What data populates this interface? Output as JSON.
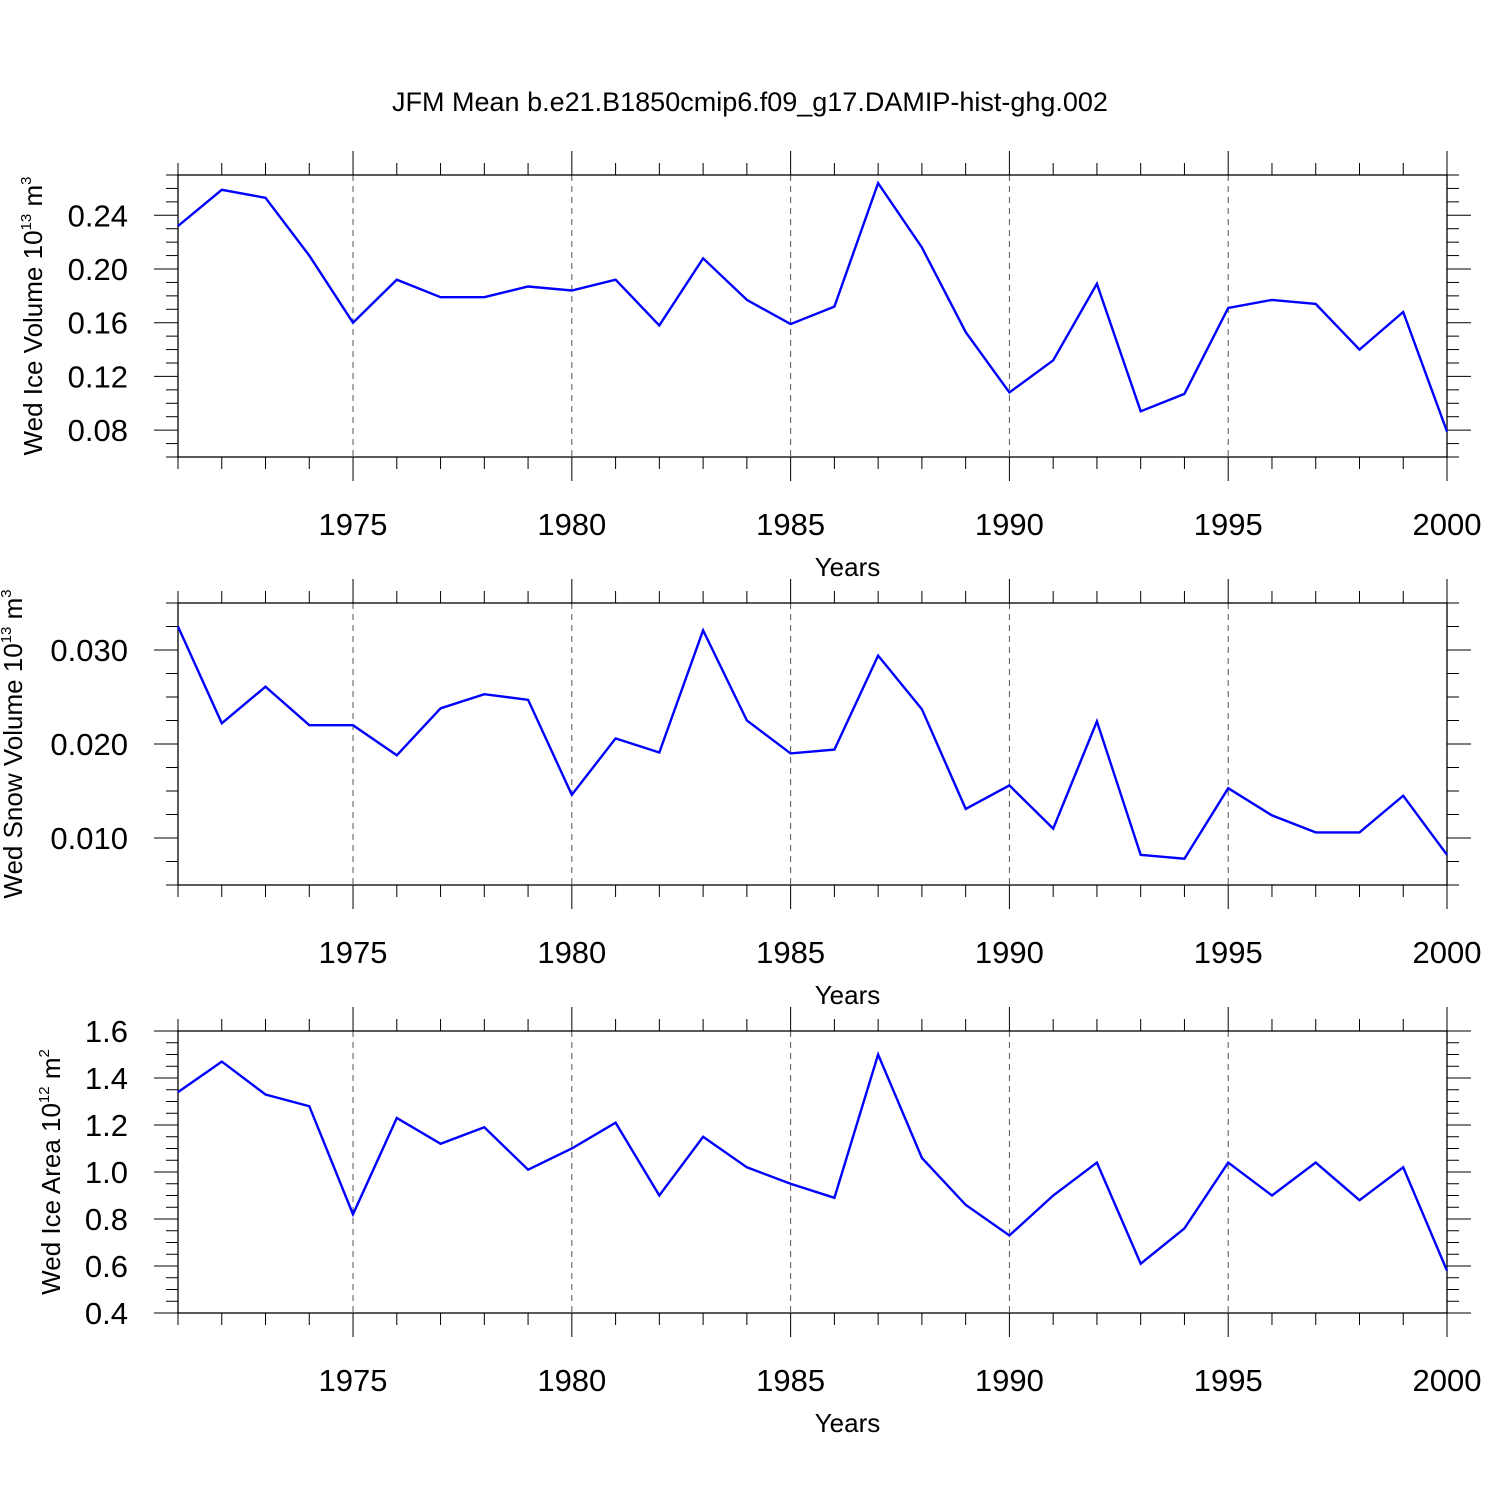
{
  "title": "JFM Mean b.e21.B1850cmip6.f09_g17.DAMIP-hist-ghg.002",
  "chart_data": [
    {
      "type": "line",
      "id": "ice-volume",
      "ylabel": {
        "main": "Wed Ice Volume 10",
        "exp": "13",
        "unit": " m",
        "unit_exp": "3"
      },
      "xlabel": "Years",
      "xlim": [
        1971,
        2000
      ],
      "ylim": [
        0.06,
        0.27
      ],
      "yticks": [
        "0.08",
        "0.12",
        "0.16",
        "0.20",
        "0.24"
      ],
      "xticks": [
        "1975",
        "1980",
        "1985",
        "1990",
        "1995",
        "2000"
      ],
      "line_color": "#0000ff",
      "x": [
        1971,
        1972,
        1973,
        1974,
        1975,
        1976,
        1977,
        1978,
        1979,
        1980,
        1981,
        1982,
        1983,
        1984,
        1985,
        1986,
        1987,
        1988,
        1989,
        1990,
        1991,
        1992,
        1993,
        1994,
        1995,
        1996,
        1997,
        1998,
        1999,
        2000
      ],
      "values": [
        0.232,
        0.259,
        0.253,
        0.21,
        0.16,
        0.192,
        0.179,
        0.179,
        0.187,
        0.184,
        0.192,
        0.158,
        0.208,
        0.177,
        0.159,
        0.172,
        0.264,
        0.216,
        0.153,
        0.108,
        0.132,
        0.189,
        0.094,
        0.107,
        0.171,
        0.177,
        0.174,
        0.14,
        0.168,
        0.079
      ]
    },
    {
      "type": "line",
      "id": "snow-volume",
      "ylabel": {
        "main": "Wed Snow Volume 10",
        "exp": "13",
        "unit": " m",
        "unit_exp": "3"
      },
      "xlabel": "Years",
      "xlim": [
        1971,
        2000
      ],
      "ylim": [
        0.005,
        0.035
      ],
      "yticks": [
        "0.010",
        "0.020",
        "0.030"
      ],
      "xticks": [
        "1975",
        "1980",
        "1985",
        "1990",
        "1995",
        "2000"
      ],
      "line_color": "#0000ff",
      "x": [
        1971,
        1972,
        1973,
        1974,
        1975,
        1976,
        1977,
        1978,
        1979,
        1980,
        1981,
        1982,
        1983,
        1984,
        1985,
        1986,
        1987,
        1988,
        1989,
        1990,
        1991,
        1992,
        1993,
        1994,
        1995,
        1996,
        1997,
        1998,
        1999,
        2000
      ],
      "values": [
        0.0325,
        0.0222,
        0.0261,
        0.022,
        0.022,
        0.0188,
        0.0238,
        0.0253,
        0.0247,
        0.0146,
        0.0206,
        0.0191,
        0.0321,
        0.0225,
        0.019,
        0.0194,
        0.0294,
        0.0237,
        0.0131,
        0.0156,
        0.011,
        0.0224,
        0.0082,
        0.0078,
        0.0153,
        0.0124,
        0.0106,
        0.0106,
        0.0145,
        0.0082
      ]
    },
    {
      "type": "line",
      "id": "ice-area",
      "ylabel": {
        "main": "Wed Ice Area 10",
        "exp": "12",
        "unit": " m",
        "unit_exp": "2"
      },
      "xlabel": "Years",
      "xlim": [
        1971,
        2000
      ],
      "ylim": [
        0.4,
        1.6
      ],
      "yticks": [
        "0.4",
        "0.6",
        "0.8",
        "1.0",
        "1.2",
        "1.4",
        "1.6"
      ],
      "xticks": [
        "1975",
        "1980",
        "1985",
        "1990",
        "1995",
        "2000"
      ],
      "line_color": "#0000ff",
      "x": [
        1971,
        1972,
        1973,
        1974,
        1975,
        1976,
        1977,
        1978,
        1979,
        1980,
        1981,
        1982,
        1983,
        1984,
        1985,
        1986,
        1987,
        1988,
        1989,
        1990,
        1991,
        1992,
        1993,
        1994,
        1995,
        1996,
        1997,
        1998,
        1999,
        2000
      ],
      "values": [
        1.34,
        1.47,
        1.33,
        1.28,
        0.82,
        1.23,
        1.12,
        1.19,
        1.01,
        1.1,
        1.21,
        0.9,
        1.15,
        1.02,
        0.95,
        0.89,
        1.5,
        1.06,
        0.86,
        0.73,
        0.9,
        1.04,
        0.61,
        0.76,
        1.04,
        0.9,
        1.04,
        0.88,
        1.02,
        0.58
      ]
    }
  ]
}
